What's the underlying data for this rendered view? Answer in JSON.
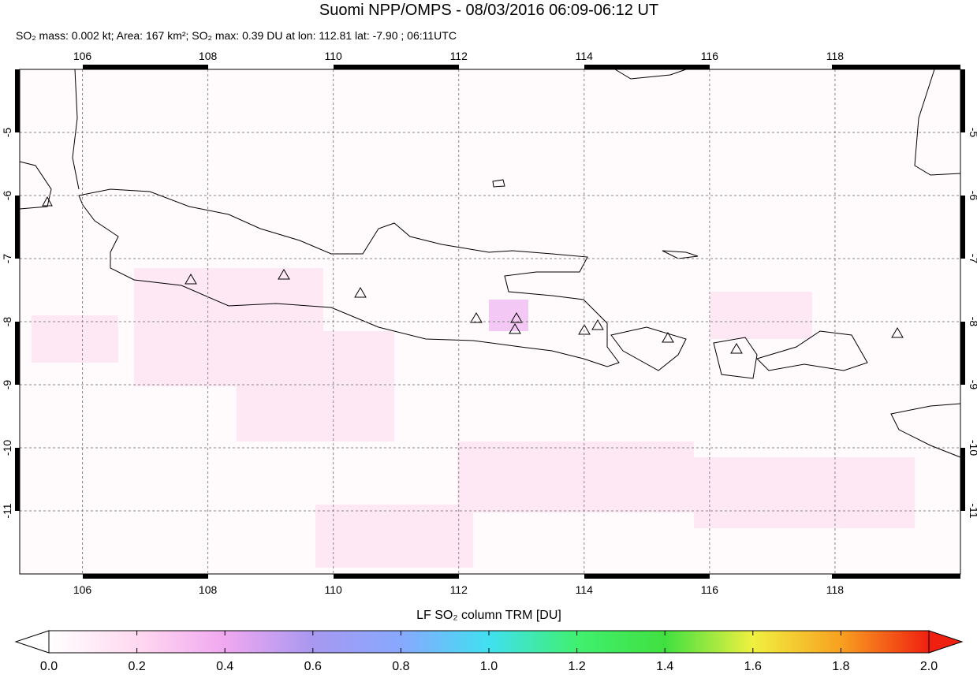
{
  "chart_data": {
    "type": "map",
    "title": "Suomi NPP/OMPS - 08/03/2016 06:09-06:12 UT",
    "subtitle": "SO₂ mass: 0.002 kt; Area: 167 km²; SO₂ max: 0.39 DU at lon: 112.81 lat: -7.90 ; 06:11UTC",
    "xlim": [
      105,
      120
    ],
    "ylim": [
      -12,
      -4
    ],
    "xticks": [
      106,
      108,
      110,
      112,
      114,
      116,
      118
    ],
    "yticks": [
      -5,
      -6,
      -7,
      -8,
      -9,
      -10,
      -11
    ],
    "grid": true,
    "colorbar": {
      "label": "LF SO₂ column TRM [DU]",
      "lim": [
        0,
        2
      ],
      "ticks": [
        {
          "value": 0,
          "label": "0.0"
        },
        0.2,
        0.4,
        0.6,
        0.8,
        {
          "value": 1,
          "label": "1.0"
        },
        1.2,
        1.4,
        1.6,
        1.8,
        {
          "value": 2,
          "label": "2.0"
        }
      ],
      "colors": [
        "#ffffff",
        "#ffd9f0",
        "#f0a8f0",
        "#a898f0",
        "#88a8ff",
        "#40e0f0",
        "#40f070",
        "#40e040",
        "#f0f040",
        "#f8a020",
        "#f02010"
      ]
    }
  }
}
